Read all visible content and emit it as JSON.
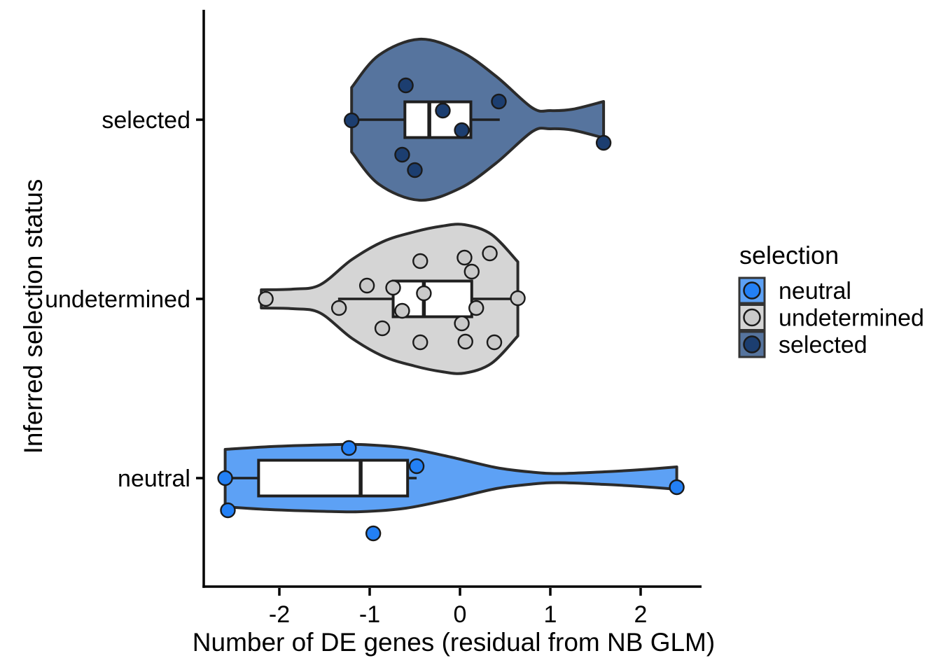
{
  "figure": {
    "background": "#ffffff",
    "x_axis": {
      "title": "Number of DE genes (residual from NB GLM)",
      "ticks": [
        {
          "value": -2,
          "label": "-2"
        },
        {
          "value": -1,
          "label": "-1"
        },
        {
          "value": 0,
          "label": "0"
        },
        {
          "value": 1,
          "label": "1"
        },
        {
          "value": 2,
          "label": "2"
        }
      ]
    },
    "y_axis": {
      "title": "Inferred selection status",
      "categories": [
        "selected",
        "undetermined",
        "neutral"
      ]
    },
    "legend": {
      "title": "selection",
      "entries": [
        {
          "label": "neutral",
          "swatch_fill": "#5DA1F5",
          "point_fill": "#2380F5"
        },
        {
          "label": "undetermined",
          "swatch_fill": "#D5D5D5",
          "point_fill": "#C9C9C9"
        },
        {
          "label": "selected",
          "swatch_fill": "#56749E",
          "point_fill": "#1C3E70"
        }
      ]
    }
  },
  "chart_data": {
    "type": "violin",
    "subtype": "violin+boxplot+jitter",
    "orientation": "horizontal",
    "title": "",
    "xlabel": "Number of DE genes (residual from NB GLM)",
    "ylabel": "Inferred selection status",
    "xlim": [
      -2.85,
      2.7
    ],
    "x_ticks": [
      -2,
      -1,
      0,
      1,
      2
    ],
    "grid": false,
    "legend_position": "right",
    "outline_color": "#2B2B2B",
    "box_stroke": "#1F1F1F",
    "point_stroke": "#1A1A1A",
    "groups": [
      {
        "name": "selected",
        "violin_fill": "#56749E",
        "point_fill": "#1C3E70",
        "profile": [
          [
            -1.2,
            46
          ],
          [
            -0.9,
            92
          ],
          [
            -0.45,
            115
          ],
          [
            0.0,
            98
          ],
          [
            0.4,
            62
          ],
          [
            0.8,
            17
          ],
          [
            1.0,
            13
          ],
          [
            1.25,
            15
          ],
          [
            1.59,
            26
          ]
        ],
        "box": {
          "whisker_lo": -1.2,
          "q1": -0.61,
          "median": -0.34,
          "q3": 0.12,
          "whisker_hi": 0.44
        },
        "points": [
          [
            -0.6,
            -49
          ],
          [
            0.43,
            -26
          ],
          [
            -0.19,
            -13
          ],
          [
            -1.2,
            1
          ],
          [
            0.02,
            15
          ],
          [
            1.59,
            33
          ],
          [
            -0.64,
            50
          ],
          [
            -0.5,
            72
          ]
        ]
      },
      {
        "name": "undetermined",
        "violin_fill": "#D5D5D5",
        "point_fill": "#C9C9C9",
        "profile": [
          [
            -2.2,
            13
          ],
          [
            -1.85,
            14
          ],
          [
            -1.55,
            20
          ],
          [
            -1.2,
            56
          ],
          [
            -0.85,
            82
          ],
          [
            -0.5,
            96
          ],
          [
            -0.2,
            104
          ],
          [
            0.05,
            106
          ],
          [
            0.35,
            92
          ],
          [
            0.64,
            53
          ]
        ],
        "box": {
          "whisker_lo": -1.35,
          "q1": -0.74,
          "median": -0.4,
          "q3": 0.13,
          "whisker_hi": 0.64
        },
        "points": [
          [
            -2.15,
            0
          ],
          [
            -1.03,
            -19
          ],
          [
            -1.34,
            13
          ],
          [
            -0.74,
            -16
          ],
          [
            -0.44,
            -54
          ],
          [
            -0.4,
            -8
          ],
          [
            -0.64,
            17
          ],
          [
            -0.86,
            42
          ],
          [
            -0.44,
            62
          ],
          [
            0.05,
            -59
          ],
          [
            0.13,
            -39
          ],
          [
            0.33,
            -65
          ],
          [
            0.18,
            13
          ],
          [
            0.02,
            35
          ],
          [
            0.06,
            61
          ],
          [
            0.38,
            62
          ],
          [
            0.64,
            -1
          ]
        ]
      },
      {
        "name": "neutral",
        "violin_fill": "#5DA1F5",
        "point_fill": "#2380F5",
        "profile": [
          [
            -2.6,
            41
          ],
          [
            -2.1,
            45
          ],
          [
            -1.5,
            47.5
          ],
          [
            -1.1,
            48
          ],
          [
            -0.6,
            43
          ],
          [
            -0.1,
            30
          ],
          [
            0.4,
            15
          ],
          [
            0.8,
            8.5
          ],
          [
            1.1,
            6.5
          ],
          [
            1.6,
            9
          ],
          [
            2.0,
            12
          ],
          [
            2.4,
            16
          ]
        ],
        "box": {
          "whisker_lo": -2.6,
          "q1": -2.23,
          "median": -1.1,
          "q3": -0.58,
          "whisker_hi": -0.48
        },
        "points": [
          [
            -2.6,
            0
          ],
          [
            -2.57,
            46
          ],
          [
            -1.23,
            -43
          ],
          [
            -0.48,
            -17
          ],
          [
            -0.96,
            79
          ],
          [
            2.4,
            13
          ]
        ]
      }
    ]
  }
}
